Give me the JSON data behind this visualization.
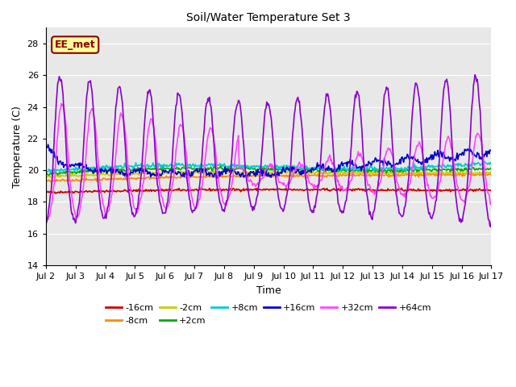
{
  "title": "Soil/Water Temperature Set 3",
  "xlabel": "Time",
  "ylabel": "Temperature (C)",
  "ylim": [
    14,
    29
  ],
  "yticks": [
    14,
    16,
    18,
    20,
    22,
    24,
    26,
    28
  ],
  "xlim": [
    0,
    15
  ],
  "xtick_labels": [
    "Jul 2",
    "Jul 3",
    "Jul 4",
    "Jul 5",
    "Jul 6",
    "Jul 7",
    "Jul 8",
    "Jul 9",
    "Jul 10",
    "Jul 11",
    "Jul 12",
    "Jul 13",
    "Jul 14",
    "Jul 15",
    "Jul 16",
    "Jul 17"
  ],
  "xtick_positions": [
    0,
    1,
    2,
    3,
    4,
    5,
    6,
    7,
    8,
    9,
    10,
    11,
    12,
    13,
    14,
    15
  ],
  "background_color": "#ffffff",
  "plot_bg_color": "#e8e8e8",
  "grid_color": "#ffffff",
  "annotation_text": "EE_met",
  "annotation_bg": "#ffff99",
  "annotation_border": "#8B0000",
  "series": {
    "-16cm": {
      "color": "#cc0000",
      "linewidth": 1.2
    },
    "-8cm": {
      "color": "#ff8800",
      "linewidth": 1.2
    },
    "-2cm": {
      "color": "#cccc00",
      "linewidth": 1.2
    },
    "+2cm": {
      "color": "#00aa00",
      "linewidth": 1.2
    },
    "+8cm": {
      "color": "#00cccc",
      "linewidth": 1.2
    },
    "+16cm": {
      "color": "#0000cc",
      "linewidth": 1.2
    },
    "+32cm": {
      "color": "#ff44ff",
      "linewidth": 1.2
    },
    "+64cm": {
      "color": "#8800cc",
      "linewidth": 1.2
    }
  },
  "n_points": 600
}
